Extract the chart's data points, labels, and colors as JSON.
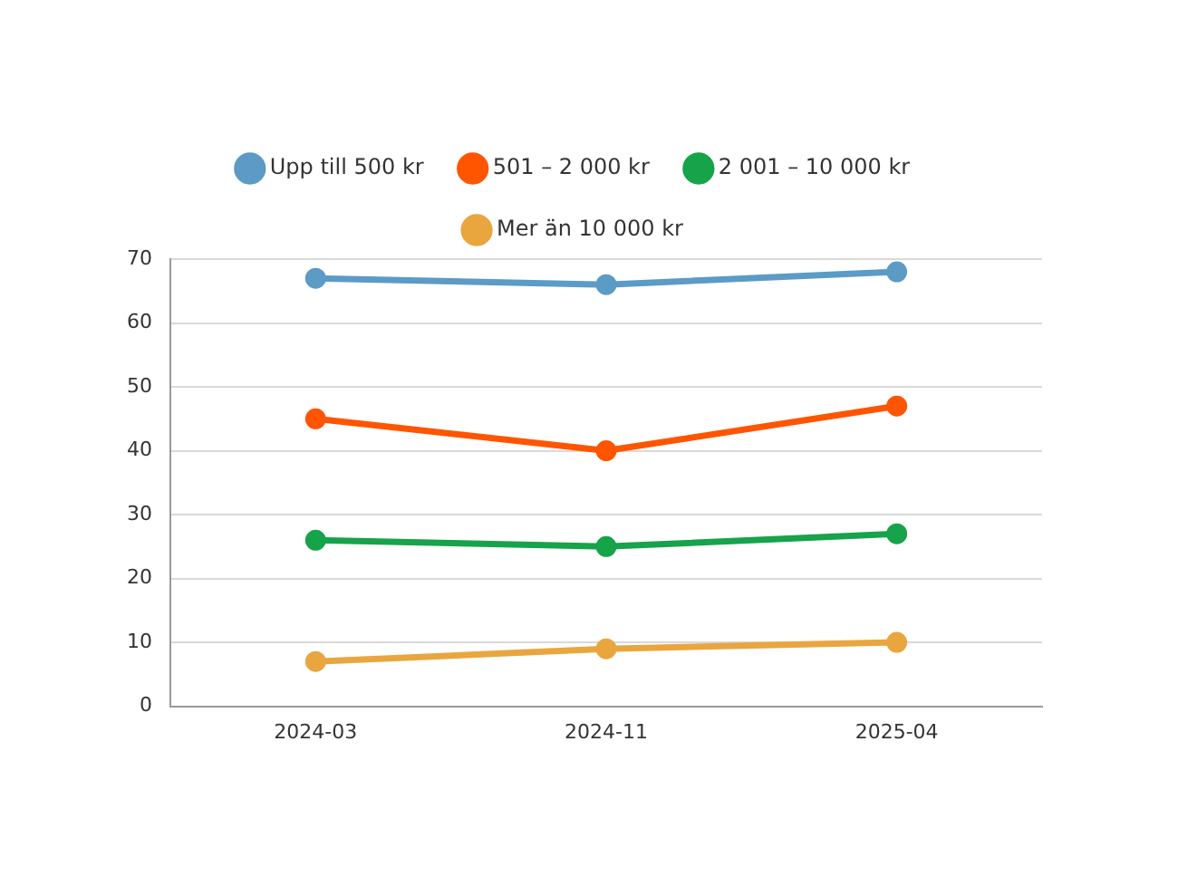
{
  "chart_data": {
    "type": "line",
    "categories": [
      "2024-03",
      "2024-11",
      "2025-04"
    ],
    "series": [
      {
        "name": "Upp till 500 kr",
        "color": "#5b9bc6",
        "values": [
          67,
          66,
          68
        ]
      },
      {
        "name": "501 – 2 000 kr",
        "color": "#ff5500",
        "values": [
          45,
          40,
          47
        ]
      },
      {
        "name": "2 001 – 10 000 kr",
        "color": "#16a34a",
        "values": [
          26,
          25,
          27
        ]
      },
      {
        "name": "Mer än 10 000 kr",
        "color": "#e9a63f",
        "values": [
          7,
          9,
          10
        ]
      }
    ],
    "ylim": [
      0,
      70
    ],
    "yticks": [
      0,
      10,
      20,
      30,
      40,
      50,
      60,
      70
    ],
    "grid": "y",
    "legend": "top",
    "marker": "circle",
    "line_style": "solid"
  }
}
